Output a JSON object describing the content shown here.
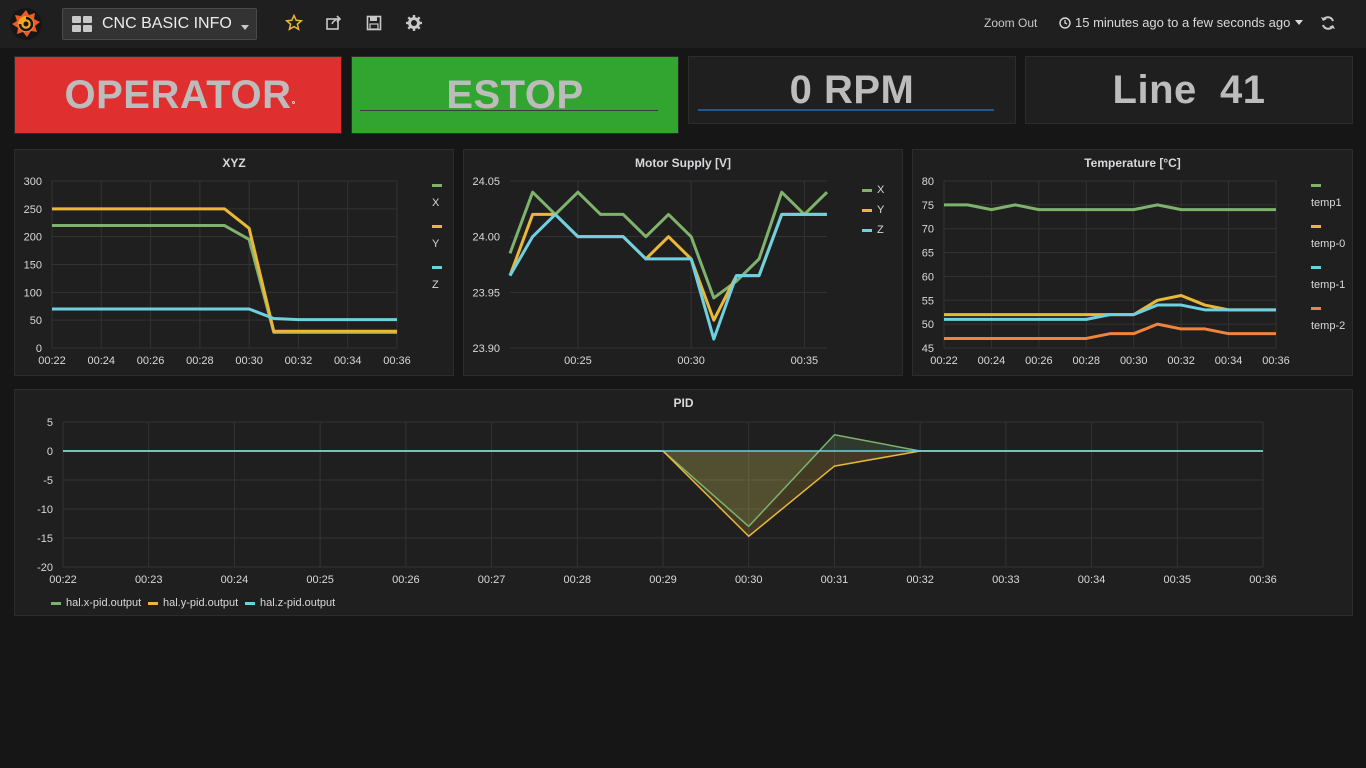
{
  "colors": {
    "green": "#7eb26d",
    "yellow": "#eab839",
    "cyan": "#6ed0e0",
    "orange": "#ef843c",
    "red_bg": "#e02f2f",
    "green_bg": "#31a530",
    "topbar": "#1f1f20",
    "panel_bg": "#1f1f20"
  },
  "topbar": {
    "dashboard_title": "CNC BASIC INFO",
    "logo_icon": "grafana-logo-icon",
    "icons": [
      "star-icon",
      "share-icon",
      "save-icon",
      "gear-icon"
    ],
    "zoom_out": "Zoom Out",
    "time_range": "15 minutes ago to a few seconds ago"
  },
  "stats": [
    {
      "value": "OPERATOR",
      "bg": "#e02f2f"
    },
    {
      "value": "ESTOP",
      "bg": "#31a530"
    },
    {
      "value": "0 RPM",
      "bg": "#1f1f20"
    },
    {
      "value": "Line  41",
      "bg": "#1f1f20"
    }
  ],
  "panels": {
    "xyz": {
      "title": "XYZ"
    },
    "motor": {
      "title": "Motor Supply [V]"
    },
    "temp": {
      "title": "Temperature [°C]"
    },
    "pid": {
      "title": "PID"
    }
  },
  "chart_data": [
    {
      "type": "line",
      "title": "XYZ",
      "x": [
        "00:22",
        "00:23",
        "00:24",
        "00:25",
        "00:26",
        "00:27",
        "00:28",
        "00:29",
        "00:30",
        "00:31",
        "00:32",
        "00:33",
        "00:34",
        "00:35",
        "00:36"
      ],
      "xticks": [
        "00:22",
        "00:24",
        "00:26",
        "00:28",
        "00:30",
        "00:32",
        "00:34",
        "00:36"
      ],
      "ylim": [
        0,
        300
      ],
      "yticks": [
        0,
        50,
        100,
        150,
        200,
        250,
        300
      ],
      "legend_placement": "right",
      "series": [
        {
          "name": "X",
          "color": "#7eb26d",
          "values": [
            220,
            220,
            220,
            220,
            220,
            220,
            220,
            220,
            195,
            28,
            28,
            28,
            28,
            28,
            28
          ]
        },
        {
          "name": "Y",
          "color": "#eab839",
          "values": [
            250,
            250,
            250,
            250,
            250,
            250,
            250,
            250,
            215,
            30,
            30,
            30,
            30,
            30,
            30
          ]
        },
        {
          "name": "Z",
          "color": "#6ed0e0",
          "values": [
            70,
            70,
            70,
            70,
            70,
            70,
            70,
            70,
            70,
            53,
            51,
            51,
            51,
            51,
            51
          ]
        }
      ]
    },
    {
      "type": "line",
      "title": "Motor Supply [V]",
      "x": [
        "00:22",
        "00:23",
        "00:24",
        "00:25",
        "00:26",
        "00:27",
        "00:28",
        "00:29",
        "00:30",
        "00:31",
        "00:32",
        "00:33",
        "00:34",
        "00:35",
        "00:36"
      ],
      "xticks": [
        "00:25",
        "00:30",
        "00:35"
      ],
      "ylim": [
        23.9,
        24.05
      ],
      "yticks": [
        "23.90",
        "23.95",
        "24.00",
        "24.05"
      ],
      "legend_placement": "right",
      "series": [
        {
          "name": "X",
          "color": "#7eb26d",
          "values": [
            23.985,
            24.04,
            24.02,
            24.04,
            24.02,
            24.02,
            24.0,
            24.02,
            24.0,
            23.945,
            23.96,
            23.98,
            24.04,
            24.02,
            24.04
          ]
        },
        {
          "name": "Y",
          "color": "#eab839",
          "values": [
            23.965,
            24.02,
            24.02,
            24.0,
            24.0,
            24.0,
            23.98,
            24.0,
            23.98,
            23.925,
            23.965,
            23.965,
            24.02,
            24.02,
            24.02
          ]
        },
        {
          "name": "Z",
          "color": "#6ed0e0",
          "values": [
            23.965,
            24.0,
            24.02,
            24.0,
            24.0,
            24.0,
            23.98,
            23.98,
            23.98,
            23.908,
            23.965,
            23.965,
            24.02,
            24.02,
            24.02
          ]
        }
      ]
    },
    {
      "type": "line",
      "title": "Temperature [°C]",
      "x": [
        "00:22",
        "00:23",
        "00:24",
        "00:25",
        "00:26",
        "00:27",
        "00:28",
        "00:29",
        "00:30",
        "00:31",
        "00:32",
        "00:33",
        "00:34",
        "00:35",
        "00:36"
      ],
      "xticks": [
        "00:22",
        "00:24",
        "00:26",
        "00:28",
        "00:30",
        "00:32",
        "00:34",
        "00:36"
      ],
      "ylim": [
        45,
        80
      ],
      "yticks": [
        45,
        50,
        55,
        60,
        65,
        70,
        75,
        80
      ],
      "legend_placement": "right",
      "series": [
        {
          "name": "temp1",
          "color": "#7eb26d",
          "values": [
            75,
            75,
            74,
            75,
            74,
            74,
            74,
            74,
            74,
            75,
            74,
            74,
            74,
            74,
            74
          ]
        },
        {
          "name": "temp-0",
          "color": "#eab839",
          "values": [
            52,
            52,
            52,
            52,
            52,
            52,
            52,
            52,
            52,
            55,
            56,
            54,
            53,
            53,
            53
          ]
        },
        {
          "name": "temp-1",
          "color": "#6ed0e0",
          "values": [
            51,
            51,
            51,
            51,
            51,
            51,
            51,
            52,
            52,
            54,
            54,
            53,
            53,
            53,
            53
          ]
        },
        {
          "name": "temp-2",
          "color": "#ef843c",
          "values": [
            47,
            47,
            47,
            47,
            47,
            47,
            47,
            48,
            48,
            50,
            49,
            49,
            48,
            48,
            48
          ]
        }
      ]
    },
    {
      "type": "area",
      "title": "PID",
      "x": [
        "00:22",
        "00:23",
        "00:24",
        "00:25",
        "00:26",
        "00:27",
        "00:28",
        "00:29",
        "00:30",
        "00:31",
        "00:32",
        "00:33",
        "00:34",
        "00:35",
        "00:36"
      ],
      "xticks": [
        "00:22",
        "00:23",
        "00:24",
        "00:25",
        "00:26",
        "00:27",
        "00:28",
        "00:29",
        "00:30",
        "00:31",
        "00:32",
        "00:33",
        "00:34",
        "00:35",
        "00:36"
      ],
      "ylim": [
        -20,
        5
      ],
      "yticks": [
        5,
        0,
        -5,
        -10,
        -15,
        -20
      ],
      "legend_placement": "bottom",
      "series": [
        {
          "name": "hal.x-pid.output",
          "color": "#7eb26d",
          "values": [
            0,
            0,
            0,
            0,
            0,
            0,
            0,
            0,
            -13,
            2.8,
            0,
            0,
            0,
            0,
            0
          ]
        },
        {
          "name": "hal.y-pid.output",
          "color": "#eab839",
          "values": [
            0,
            0,
            0,
            0,
            0,
            0,
            0,
            0,
            -14.7,
            -2.6,
            0,
            0,
            0,
            0,
            0
          ]
        },
        {
          "name": "hal.z-pid.output",
          "color": "#6ed0e0",
          "values": [
            0,
            0,
            0,
            0,
            0,
            0,
            0,
            0,
            0,
            0,
            0,
            0,
            0,
            0,
            0
          ]
        }
      ]
    }
  ]
}
